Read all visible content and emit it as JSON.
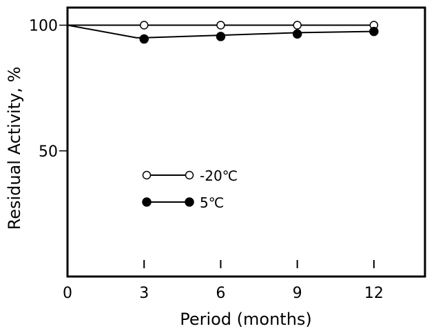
{
  "chart_data": {
    "type": "line",
    "xlabel": "Period (months)",
    "ylabel": "Residual Activity, %",
    "xlim": [
      0,
      14
    ],
    "ylim": [
      0,
      107
    ],
    "x_ticks": [
      0,
      3,
      6,
      9,
      12
    ],
    "y_ticks": [
      50,
      100
    ],
    "grid": false,
    "legend_position": "center-left",
    "series": [
      {
        "name": "-20℃",
        "marker": "open-circle",
        "color": "#000000",
        "line": [
          [
            0,
            100
          ],
          [
            3,
            100
          ],
          [
            6,
            100
          ],
          [
            9,
            100
          ],
          [
            12,
            100
          ]
        ],
        "points": [
          [
            3,
            100
          ],
          [
            6,
            100
          ],
          [
            9,
            100
          ],
          [
            12,
            100
          ]
        ]
      },
      {
        "name": "5℃",
        "marker": "filled-circle",
        "color": "#000000",
        "line": [
          [
            0,
            100
          ],
          [
            2.7,
            95
          ],
          [
            3,
            95
          ],
          [
            6,
            96
          ],
          [
            9,
            97
          ],
          [
            12,
            97.5
          ]
        ],
        "points": [
          [
            3,
            94.5
          ],
          [
            6,
            95.5
          ],
          [
            9,
            96.5
          ],
          [
            12,
            97.5
          ]
        ]
      }
    ]
  }
}
